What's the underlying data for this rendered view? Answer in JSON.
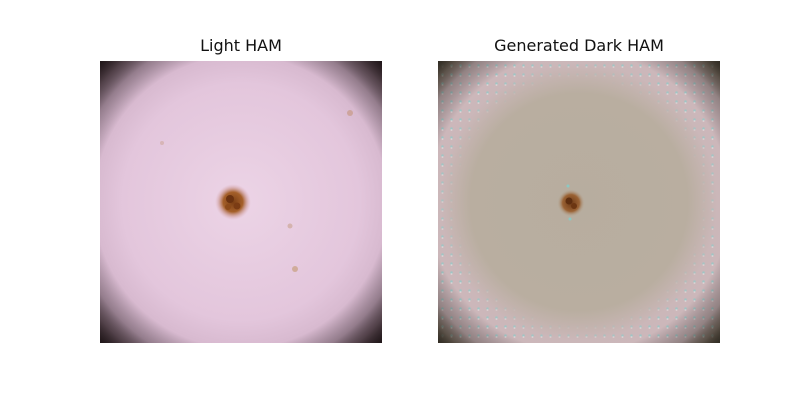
{
  "panels": [
    {
      "title": "Light HAM"
    },
    {
      "title": "Generated Dark HAM"
    }
  ],
  "colors": {
    "light_skin": "#e6c8dc",
    "light_lesion": "#8a4a1c",
    "dark_skin": "#b8aea0",
    "dark_halo": "#cdb6b8",
    "corner_dark": "#2a2424",
    "dot_cyan": "#7fd0cc"
  }
}
